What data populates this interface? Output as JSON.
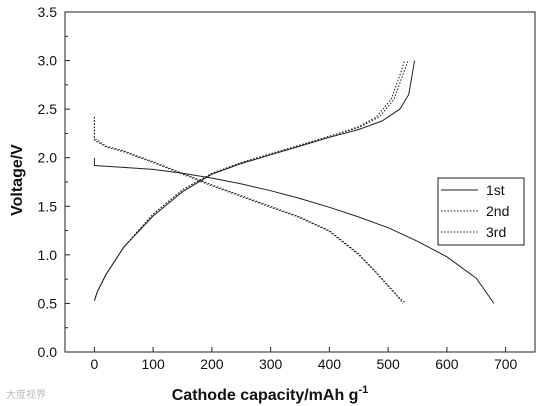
{
  "chart_data": {
    "type": "line",
    "xlabel": "Cathode capacity/mAh g",
    "xlabel_sup": "-1",
    "ylabel": "Voltage/V",
    "xlim": [
      -50,
      750
    ],
    "ylim": [
      0.0,
      3.5
    ],
    "xticks": [
      0,
      100,
      200,
      300,
      400,
      500,
      600,
      700
    ],
    "yticks": [
      0.0,
      0.5,
      1.0,
      1.5,
      2.0,
      2.5,
      3.0,
      3.5
    ],
    "grid": false,
    "legend_position": "right",
    "series": [
      {
        "name": "1st",
        "style": "solid",
        "discharge": [
          [
            0,
            2.0
          ],
          [
            0,
            1.92
          ],
          [
            50,
            1.9
          ],
          [
            100,
            1.88
          ],
          [
            150,
            1.84
          ],
          [
            200,
            1.79
          ],
          [
            250,
            1.73
          ],
          [
            300,
            1.66
          ],
          [
            350,
            1.58
          ],
          [
            400,
            1.49
          ],
          [
            450,
            1.39
          ],
          [
            500,
            1.28
          ],
          [
            550,
            1.14
          ],
          [
            600,
            0.98
          ],
          [
            650,
            0.76
          ],
          [
            680,
            0.5
          ]
        ],
        "charge": [
          [
            0,
            0.53
          ],
          [
            5,
            0.62
          ],
          [
            20,
            0.8
          ],
          [
            50,
            1.08
          ],
          [
            100,
            1.4
          ],
          [
            150,
            1.65
          ],
          [
            200,
            1.83
          ],
          [
            250,
            1.94
          ],
          [
            300,
            2.03
          ],
          [
            350,
            2.12
          ],
          [
            400,
            2.21
          ],
          [
            450,
            2.29
          ],
          [
            490,
            2.38
          ],
          [
            520,
            2.5
          ],
          [
            535,
            2.65
          ],
          [
            545,
            3.0
          ]
        ]
      },
      {
        "name": "2nd",
        "style": "dotted",
        "discharge": [
          [
            0,
            2.42
          ],
          [
            0,
            2.2
          ],
          [
            20,
            2.12
          ],
          [
            50,
            2.07
          ],
          [
            100,
            1.96
          ],
          [
            150,
            1.84
          ],
          [
            200,
            1.72
          ],
          [
            250,
            1.61
          ],
          [
            300,
            1.5
          ],
          [
            350,
            1.39
          ],
          [
            400,
            1.25
          ],
          [
            450,
            1.01
          ],
          [
            480,
            0.82
          ],
          [
            510,
            0.62
          ],
          [
            525,
            0.5
          ]
        ],
        "charge": [
          [
            0,
            0.53
          ],
          [
            5,
            0.62
          ],
          [
            20,
            0.8
          ],
          [
            50,
            1.08
          ],
          [
            100,
            1.42
          ],
          [
            150,
            1.67
          ],
          [
            200,
            1.84
          ],
          [
            250,
            1.95
          ],
          [
            300,
            2.04
          ],
          [
            350,
            2.13
          ],
          [
            400,
            2.22
          ],
          [
            450,
            2.32
          ],
          [
            480,
            2.42
          ],
          [
            505,
            2.6
          ],
          [
            520,
            2.85
          ],
          [
            528,
            3.0
          ]
        ]
      },
      {
        "name": "3rd",
        "style": "dotted",
        "discharge": [
          [
            0,
            2.42
          ],
          [
            0,
            2.18
          ],
          [
            20,
            2.11
          ],
          [
            50,
            2.06
          ],
          [
            100,
            1.95
          ],
          [
            150,
            1.83
          ],
          [
            200,
            1.71
          ],
          [
            250,
            1.6
          ],
          [
            300,
            1.49
          ],
          [
            350,
            1.38
          ],
          [
            400,
            1.24
          ],
          [
            450,
            1.0
          ],
          [
            480,
            0.81
          ],
          [
            510,
            0.61
          ],
          [
            530,
            0.5
          ]
        ],
        "charge": [
          [
            0,
            0.53
          ],
          [
            5,
            0.62
          ],
          [
            20,
            0.8
          ],
          [
            50,
            1.08
          ],
          [
            100,
            1.42
          ],
          [
            150,
            1.67
          ],
          [
            200,
            1.84
          ],
          [
            250,
            1.95
          ],
          [
            300,
            2.04
          ],
          [
            350,
            2.13
          ],
          [
            400,
            2.22
          ],
          [
            450,
            2.31
          ],
          [
            485,
            2.42
          ],
          [
            510,
            2.6
          ],
          [
            525,
            2.85
          ],
          [
            534,
            3.0
          ]
        ]
      }
    ]
  },
  "watermark_text": "大度视界"
}
